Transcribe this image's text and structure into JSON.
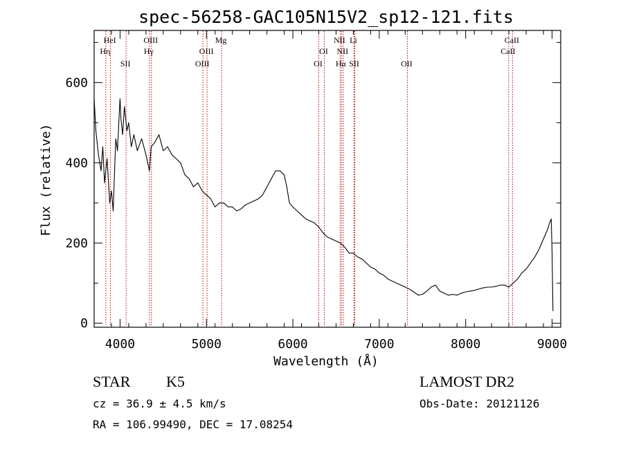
{
  "chart_data": {
    "type": "line",
    "title": "spec-56258-GAC105N15V2_sp12-121.fits",
    "xlabel": "Wavelength (Å)",
    "ylabel": "Flux (relative)",
    "xlim": [
      3700,
      9100
    ],
    "ylim": [
      -10,
      730
    ],
    "x_ticks": [
      4000,
      5000,
      6000,
      7000,
      8000,
      9000
    ],
    "y_ticks": [
      0,
      200,
      400,
      600
    ],
    "grid": false,
    "line_color": "#000000",
    "marker_color": "#c00000",
    "spectrum": {
      "x": [
        3700,
        3720,
        3750,
        3780,
        3800,
        3820,
        3850,
        3880,
        3900,
        3920,
        3950,
        3970,
        3990,
        4000,
        4010,
        4030,
        4050,
        4080,
        4100,
        4130,
        4160,
        4200,
        4250,
        4300,
        4340,
        4360,
        4400,
        4450,
        4500,
        4550,
        4600,
        4650,
        4700,
        4750,
        4800,
        4850,
        4900,
        4950,
        5000,
        5050,
        5100,
        5150,
        5200,
        5250,
        5300,
        5350,
        5400,
        5450,
        5500,
        5550,
        5600,
        5650,
        5700,
        5750,
        5800,
        5850,
        5900,
        5930,
        5960,
        6000,
        6050,
        6100,
        6150,
        6200,
        6250,
        6300,
        6350,
        6400,
        6450,
        6500,
        6550,
        6600,
        6650,
        6700,
        6750,
        6800,
        6850,
        6900,
        6950,
        7000,
        7050,
        7100,
        7150,
        7200,
        7250,
        7300,
        7350,
        7400,
        7450,
        7500,
        7550,
        7600,
        7650,
        7700,
        7750,
        7800,
        7850,
        7900,
        7950,
        8000,
        8050,
        8100,
        8150,
        8200,
        8250,
        8300,
        8350,
        8400,
        8450,
        8500,
        8550,
        8600,
        8650,
        8700,
        8750,
        8800,
        8850,
        8900,
        8950,
        8970,
        8990,
        9000,
        9010
      ],
      "y": [
        560,
        480,
        420,
        380,
        440,
        350,
        410,
        300,
        330,
        280,
        460,
        430,
        520,
        560,
        510,
        470,
        540,
        480,
        500,
        440,
        470,
        430,
        460,
        420,
        380,
        440,
        450,
        470,
        430,
        440,
        420,
        410,
        400,
        370,
        360,
        340,
        350,
        330,
        320,
        310,
        290,
        300,
        300,
        290,
        290,
        280,
        285,
        295,
        300,
        305,
        310,
        320,
        340,
        360,
        380,
        380,
        370,
        340,
        300,
        290,
        280,
        270,
        260,
        255,
        250,
        240,
        225,
        215,
        210,
        205,
        200,
        190,
        175,
        175,
        165,
        160,
        150,
        140,
        135,
        125,
        120,
        110,
        105,
        100,
        95,
        90,
        85,
        78,
        70,
        72,
        80,
        90,
        95,
        80,
        75,
        70,
        72,
        70,
        75,
        78,
        80,
        82,
        85,
        88,
        90,
        90,
        92,
        95,
        95,
        90,
        100,
        110,
        125,
        135,
        150,
        165,
        185,
        210,
        235,
        250,
        260,
        180,
        30
      ]
    },
    "lines": [
      {
        "label": "HeI",
        "wavelength": 3889,
        "row": 1
      },
      {
        "label": "Hη",
        "wavelength": 3835,
        "row": 2
      },
      {
        "label": "SII",
        "wavelength": 4070,
        "row": 3
      },
      {
        "label": "OIII",
        "wavelength": 4363,
        "row": 1
      },
      {
        "label": "Hγ",
        "wavelength": 4340,
        "row": 2
      },
      {
        "label": "OIII",
        "wavelength": 5007,
        "row": 2
      },
      {
        "label": "OIII",
        "wavelength": 4959,
        "row": 3
      },
      {
        "label": "Mg",
        "wavelength": 5175,
        "row": 1
      },
      {
        "label": "OI",
        "wavelength": 6364,
        "row": 2
      },
      {
        "label": "OI",
        "wavelength": 6300,
        "row": 3
      },
      {
        "label": "NII",
        "wavelength": 6548,
        "row": 1
      },
      {
        "label": "Li",
        "wavelength": 6708,
        "row": 1
      },
      {
        "label": "NII",
        "wavelength": 6583,
        "row": 2
      },
      {
        "label": "Hα",
        "wavelength": 6563,
        "row": 3
      },
      {
        "label": "SII",
        "wavelength": 6717,
        "row": 3
      },
      {
        "label": "OII",
        "wavelength": 7325,
        "row": 3
      },
      {
        "label": "CaII",
        "wavelength": 8542,
        "row": 1
      },
      {
        "label": "CaII",
        "wavelength": 8498,
        "row": 2
      }
    ]
  },
  "footer": {
    "object_class": "STAR",
    "subclass": "K5",
    "survey": "LAMOST DR2",
    "redshift": "cz = 36.9 ± 4.5 km/s",
    "obs_date": "Obs-Date: 20121126",
    "coords": "RA = 106.99490, DEC =  17.08254"
  }
}
